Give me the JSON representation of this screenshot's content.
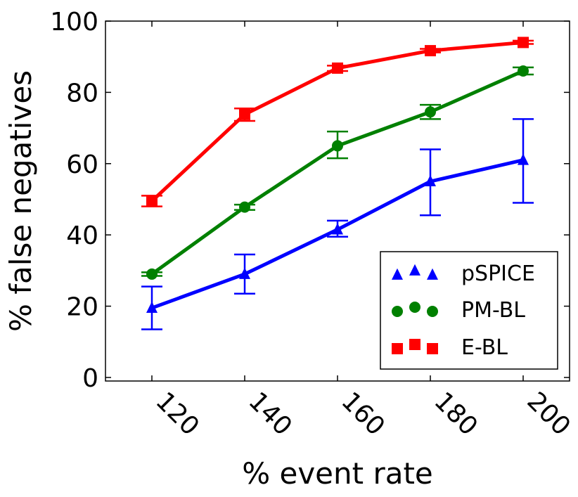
{
  "chart_data": {
    "type": "line",
    "title": "",
    "xlabel": "% event rate",
    "ylabel": "% false negatives",
    "x": [
      120,
      140,
      160,
      180,
      200
    ],
    "xlim": [
      110,
      210
    ],
    "ylim": [
      -1,
      100
    ],
    "xticks": [
      120,
      140,
      160,
      180,
      200
    ],
    "yticks": [
      0,
      20,
      40,
      60,
      80,
      100
    ],
    "grid": false,
    "legend_position": "bottom-right",
    "series": [
      {
        "name": "pSPICE",
        "color": "#0000ff",
        "marker": "triangle",
        "values": [
          19.5,
          29,
          41.5,
          55,
          61
        ],
        "err_low": [
          13.5,
          23.5,
          39.5,
          45.5,
          49
        ],
        "err_high": [
          25.5,
          34.5,
          44,
          64,
          72.5
        ]
      },
      {
        "name": "PM-BL",
        "color": "#008000",
        "marker": "circle",
        "values": [
          29,
          47.8,
          65,
          74.5,
          86
        ],
        "err_low": [
          28.5,
          47,
          61.5,
          72.5,
          85
        ],
        "err_high": [
          29.5,
          48.5,
          69,
          76.5,
          87
        ]
      },
      {
        "name": "E-BL",
        "color": "#ff0000",
        "marker": "square",
        "values": [
          49.5,
          73.8,
          86.8,
          91.7,
          94
        ],
        "err_low": [
          48,
          72,
          86,
          91.2,
          93.6
        ],
        "err_high": [
          51,
          75.5,
          87.5,
          92.2,
          94.5
        ]
      }
    ]
  }
}
